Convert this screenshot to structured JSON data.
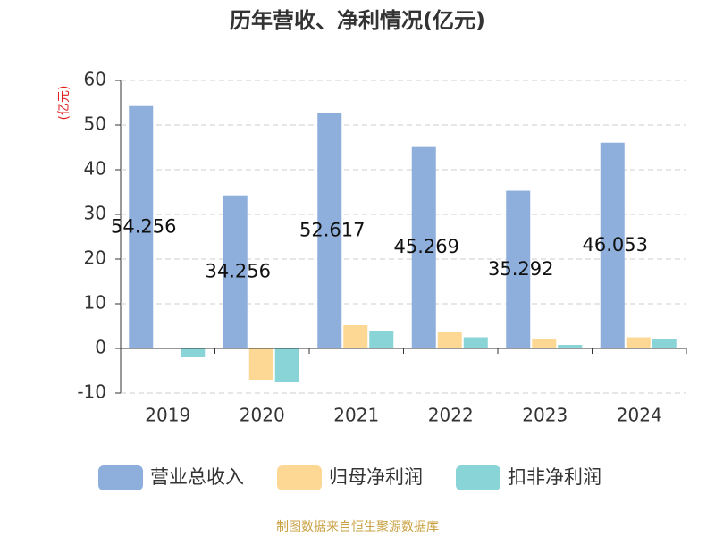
{
  "chart_data": {
    "type": "bar",
    "title": "历年营收、净利情况(亿元)",
    "y_label": "(亿元)",
    "categories": [
      "2019",
      "2020",
      "2021",
      "2022",
      "2023",
      "2024"
    ],
    "series": [
      {
        "name": "营业总收入",
        "color": "#8eaedb",
        "values": [
          54.256,
          34.256,
          52.617,
          45.269,
          35.292,
          46.053
        ]
      },
      {
        "name": "归母净利润",
        "color": "#fdd794",
        "values": [
          null,
          -7.0,
          5.2,
          3.6,
          2.1,
          2.5
        ]
      },
      {
        "name": "扣非净利润",
        "color": "#88d4d6",
        "values": [
          -2.0,
          -7.6,
          4.0,
          2.5,
          0.8,
          2.1
        ]
      }
    ],
    "ylim": [
      -10,
      60
    ],
    "yticks": [
      -10,
      0,
      10,
      20,
      30,
      40,
      50,
      60
    ],
    "grid": true,
    "source": "制图数据来自恒生聚源数据库"
  }
}
